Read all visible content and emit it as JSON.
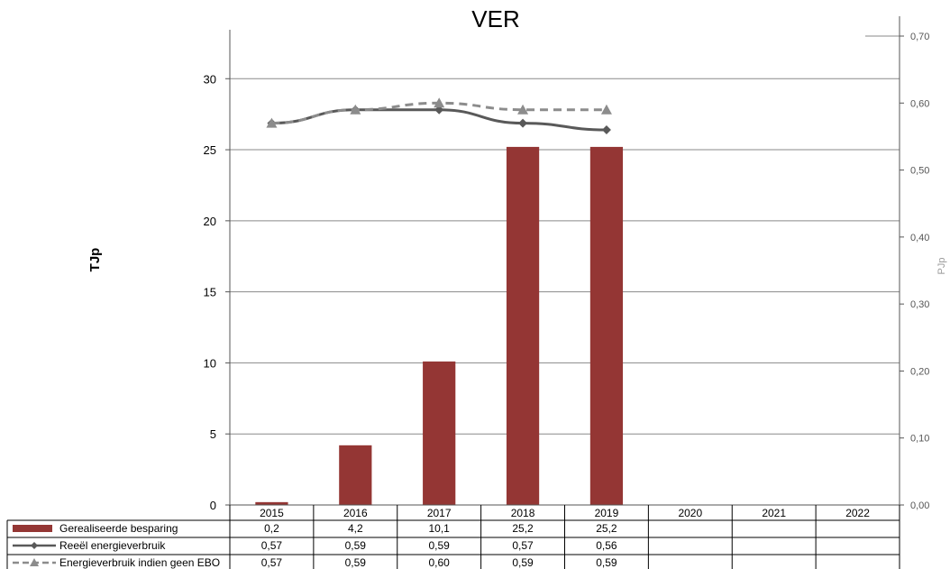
{
  "chart_data": {
    "type": "bar",
    "title": "VER",
    "ylabel": "TJp",
    "y2label": "PJp",
    "categories": [
      "2015",
      "2016",
      "2017",
      "2018",
      "2019",
      "2020",
      "2021",
      "2022"
    ],
    "ylim": [
      0,
      33
    ],
    "y2lim": [
      0,
      0.7
    ],
    "yticks": [
      "0",
      "5",
      "10",
      "15",
      "20",
      "25",
      "30"
    ],
    "y2ticks": [
      "0,00",
      "0,10",
      "0,20",
      "0,30",
      "0,40",
      "0,50",
      "0,60",
      "0,70"
    ],
    "gridlines": true,
    "legend_position": "data-table-left",
    "series": [
      {
        "name": "Gerealiseerde besparing",
        "type": "bar",
        "axis": "left",
        "color": "#943634",
        "values": [
          0.2,
          4.2,
          10.1,
          25.2,
          25.2,
          null,
          null,
          null
        ],
        "labels": [
          "0,2",
          "4,2",
          "10,1",
          "25,2",
          "25,2",
          "",
          "",
          ""
        ]
      },
      {
        "name": "Reeël energieverbruik",
        "type": "line",
        "axis": "right",
        "color": "#595959",
        "dash": "solid",
        "marker": "diamond",
        "values": [
          0.57,
          0.59,
          0.59,
          0.57,
          0.56,
          null,
          null,
          null
        ],
        "labels": [
          "0,57",
          "0,59",
          "0,59",
          "0,57",
          "0,56",
          "",
          "",
          ""
        ]
      },
      {
        "name": "Energieverbruik indien geen EBO",
        "type": "line",
        "axis": "right",
        "color": "#8c8c8c",
        "dash": "dashed",
        "marker": "triangle",
        "values": [
          0.57,
          0.59,
          0.6,
          0.59,
          0.59,
          null,
          null,
          null
        ],
        "labels": [
          "0,57",
          "0,59",
          "0,60",
          "0,59",
          "0,59",
          "",
          "",
          ""
        ]
      }
    ]
  }
}
